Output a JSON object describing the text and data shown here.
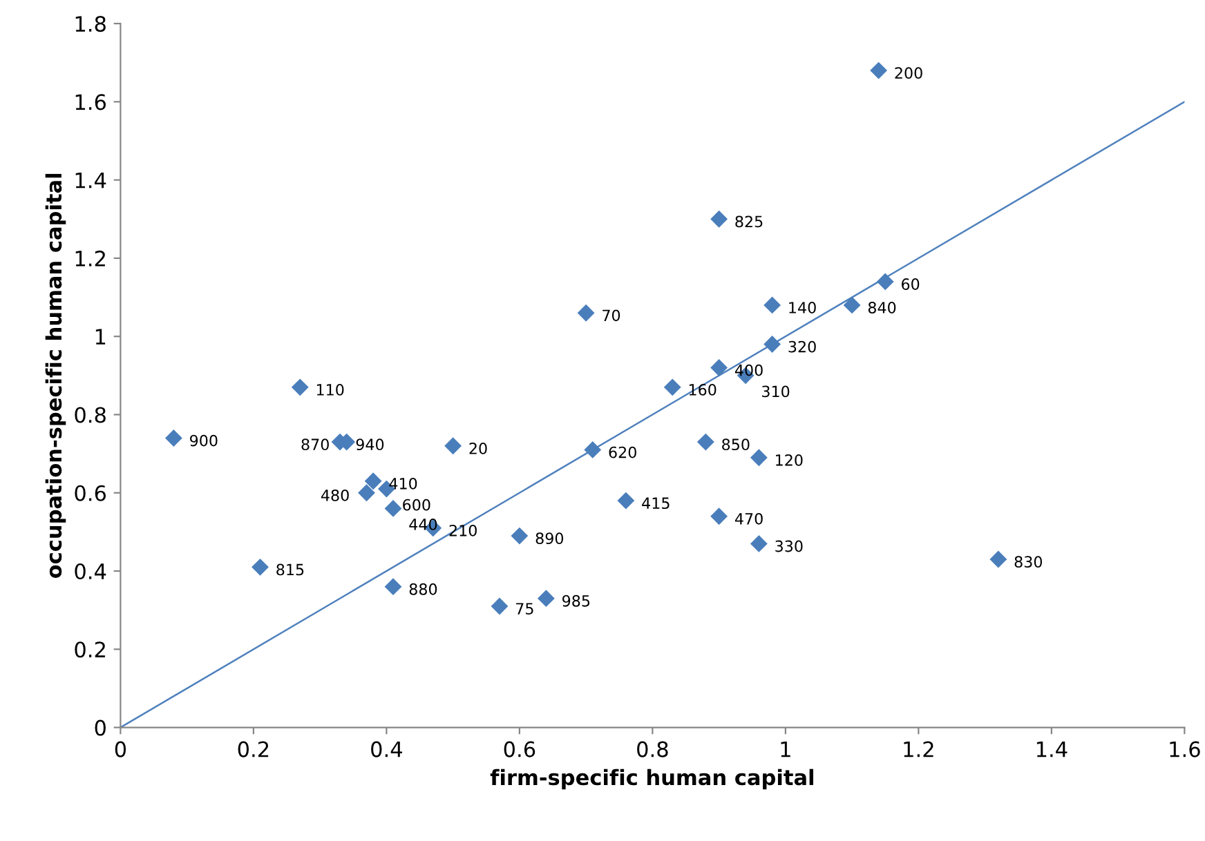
{
  "chart_data": {
    "type": "scatter",
    "xlabel": "firm-specific human capital",
    "ylabel": "occupation-specific human capital",
    "xlim": [
      0,
      1.6
    ],
    "ylim": [
      0,
      1.8
    ],
    "xticks": [
      0,
      0.2,
      0.4,
      0.6,
      0.8,
      1,
      1.2,
      1.4,
      1.6
    ],
    "yticks": [
      0,
      0.2,
      0.4,
      0.6,
      0.8,
      1,
      1.2,
      1.4,
      1.6,
      1.8
    ],
    "grid": false,
    "legend": false,
    "series": [
      {
        "color": "#4a7ebb",
        "marker": "diamond",
        "x": [
          1.14,
          0.9,
          1.15,
          0.98,
          1.1,
          0.7,
          0.98,
          0.9,
          0.94,
          0.83,
          0.27,
          0.08,
          0.33,
          0.34,
          0.5,
          0.71,
          0.88,
          0.96,
          0.38,
          0.4,
          0.37,
          0.41,
          0.47,
          0.76,
          0.9,
          0.96,
          1.32,
          0.6,
          0.21,
          0.41,
          0.57,
          0.64
        ],
        "values": [
          1.68,
          1.3,
          1.14,
          1.08,
          1.08,
          1.06,
          0.98,
          0.92,
          0.9,
          0.87,
          0.87,
          0.74,
          0.73,
          0.73,
          0.72,
          0.71,
          0.73,
          0.69,
          0.63,
          0.61,
          0.6,
          0.56,
          0.51,
          0.58,
          0.54,
          0.47,
          0.43,
          0.49,
          0.41,
          0.36,
          0.31,
          0.33
        ]
      },
      {
        "type": "line",
        "color": "#4f81bd",
        "marker": "none",
        "line_style": "solid",
        "x": [
          0,
          1.6
        ],
        "values": [
          0,
          1.6
        ]
      }
    ],
    "annotations": [
      {
        "text": "200",
        "x": 1.14,
        "y": 1.68
      },
      {
        "text": "825",
        "x": 0.9,
        "y": 1.3
      },
      {
        "text": "60",
        "x": 1.15,
        "y": 1.14
      },
      {
        "text": "140",
        "x": 0.98,
        "y": 1.08
      },
      {
        "text": "840",
        "x": 1.1,
        "y": 1.08
      },
      {
        "text": "70",
        "x": 0.7,
        "y": 1.06
      },
      {
        "text": "320",
        "x": 0.98,
        "y": 0.98
      },
      {
        "text": "400",
        "x": 0.9,
        "y": 0.92
      },
      {
        "text": "310",
        "x": 0.94,
        "y": 0.9
      },
      {
        "text": "160",
        "x": 0.83,
        "y": 0.87
      },
      {
        "text": "110",
        "x": 0.27,
        "y": 0.87
      },
      {
        "text": "900",
        "x": 0.08,
        "y": 0.74
      },
      {
        "text": "940",
        "x": 0.33,
        "y": 0.73
      },
      {
        "text": "870",
        "x": 0.34,
        "y": 0.73
      },
      {
        "text": "20",
        "x": 0.5,
        "y": 0.72
      },
      {
        "text": "620",
        "x": 0.71,
        "y": 0.71
      },
      {
        "text": "850",
        "x": 0.88,
        "y": 0.73
      },
      {
        "text": "120",
        "x": 0.96,
        "y": 0.69
      },
      {
        "text": "410",
        "x": 0.38,
        "y": 0.63
      },
      {
        "text": "600",
        "x": 0.4,
        "y": 0.61
      },
      {
        "text": "480",
        "x": 0.37,
        "y": 0.6
      },
      {
        "text": "440",
        "x": 0.41,
        "y": 0.56
      },
      {
        "text": "210",
        "x": 0.47,
        "y": 0.51
      },
      {
        "text": "415",
        "x": 0.76,
        "y": 0.58
      },
      {
        "text": "470",
        "x": 0.9,
        "y": 0.54
      },
      {
        "text": "330",
        "x": 0.96,
        "y": 0.47
      },
      {
        "text": "830",
        "x": 1.32,
        "y": 0.43
      },
      {
        "text": "890",
        "x": 0.6,
        "y": 0.49
      },
      {
        "text": "815",
        "x": 0.21,
        "y": 0.41
      },
      {
        "text": "880",
        "x": 0.41,
        "y": 0.36
      },
      {
        "text": "75",
        "x": 0.57,
        "y": 0.31
      },
      {
        "text": "985",
        "x": 0.64,
        "y": 0.33
      }
    ]
  }
}
